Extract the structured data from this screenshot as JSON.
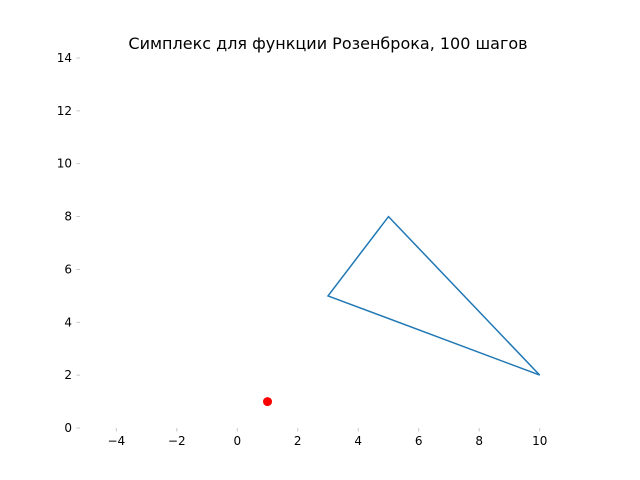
{
  "chart_data": {
    "type": "line",
    "title": "Симплекс для функции Розенброка, 100 шагов",
    "xlim": [
      -5.2,
      11.2
    ],
    "ylim": [
      0,
      14
    ],
    "xticks": [
      -4,
      -2,
      0,
      2,
      4,
      6,
      8,
      10
    ],
    "yticks": [
      0,
      2,
      4,
      6,
      8,
      10,
      12,
      14
    ],
    "xtick_labels": [
      "−4",
      "−2",
      "0",
      "2",
      "4",
      "6",
      "8",
      "10"
    ],
    "ytick_labels": [
      "0",
      "2",
      "4",
      "6",
      "8",
      "10",
      "12",
      "14"
    ],
    "grid": false,
    "series": [
      {
        "kind": "polygon",
        "color": "#1f77b4",
        "points": [
          [
            3,
            5
          ],
          [
            5,
            8
          ],
          [
            10,
            2
          ]
        ]
      },
      {
        "kind": "point",
        "color": "#ff0000",
        "points": [
          [
            1,
            1
          ]
        ]
      }
    ]
  }
}
